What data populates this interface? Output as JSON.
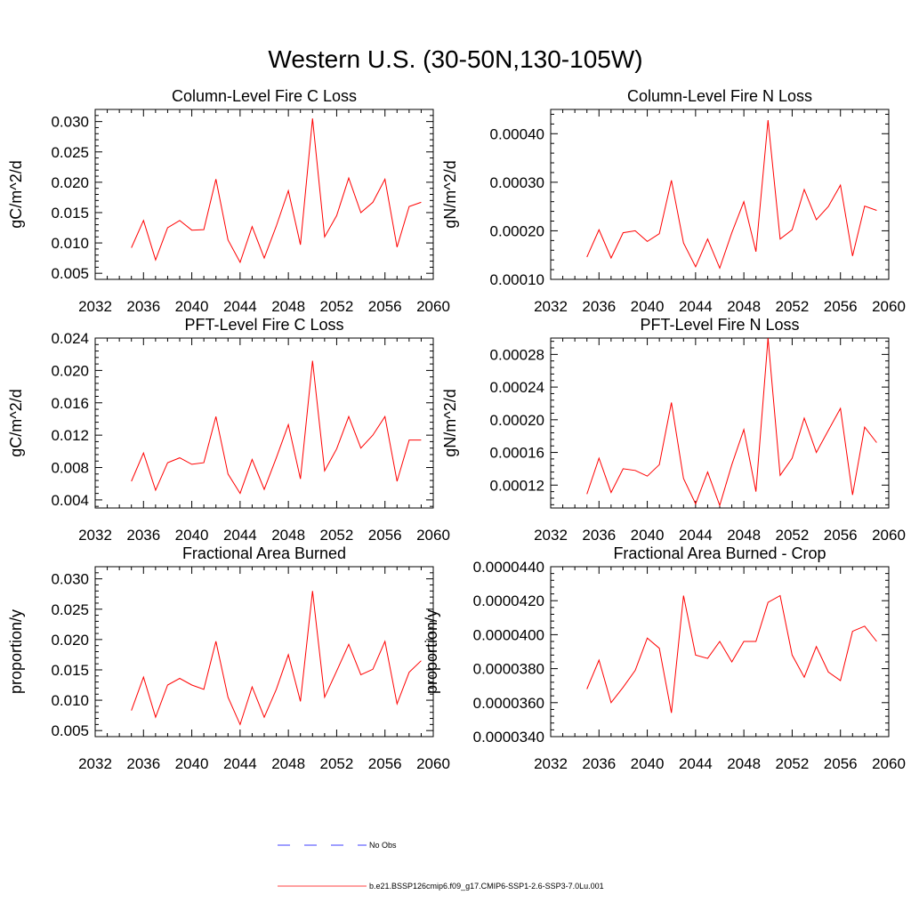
{
  "title": "Western U.S. (30-50N,130-105W)",
  "legend": {
    "obs_label": "No Obs",
    "model_label": "b.e21.BSSP126cmip6.f09_g17.CMIP6-SSP1-2.6-SSP3-7.0Lu.001",
    "obs_color": "#0000ff",
    "model_color": "#ff0000"
  },
  "chart_data": [
    {
      "type": "line",
      "title": "Column-Level Fire C Loss",
      "ylabel": "gC/m^2/d",
      "xlim": [
        2032,
        2060
      ],
      "ylim": [
        0.004,
        0.032
      ],
      "xticks": [
        "2032",
        "2036",
        "2040",
        "2044",
        "2048",
        "2052",
        "2056",
        "2060"
      ],
      "yticks": [
        0.005,
        0.01,
        0.015,
        0.02,
        0.025,
        0.03
      ],
      "ytick_labels": [
        "0.005",
        "0.010",
        "0.015",
        "0.020",
        "0.025",
        "0.030"
      ],
      "x": [
        2035,
        2036,
        2037,
        2038,
        2039,
        2040,
        2041,
        2042,
        2043,
        2044,
        2045,
        2046,
        2047,
        2048,
        2049,
        2050,
        2051,
        2052,
        2053,
        2054,
        2055,
        2056,
        2057,
        2058,
        2059
      ],
      "series": [
        {
          "color": "#ff0000",
          "values": [
            0.0092,
            0.0137,
            0.0072,
            0.0125,
            0.0137,
            0.0121,
            0.0122,
            0.0205,
            0.0105,
            0.0068,
            0.0127,
            0.0075,
            0.0128,
            0.0186,
            0.0097,
            0.0305,
            0.011,
            0.0145,
            0.0207,
            0.015,
            0.0167,
            0.0205,
            0.0093,
            0.016,
            0.0167
          ]
        }
      ]
    },
    {
      "type": "line",
      "title": "Column-Level Fire N Loss",
      "ylabel": "gN/m^2/d",
      "xlim": [
        2032,
        2060
      ],
      "ylim": [
        0.0001,
        0.00045
      ],
      "xticks": [
        "2032",
        "2036",
        "2040",
        "2044",
        "2048",
        "2052",
        "2056",
        "2060"
      ],
      "yticks": [
        0.0001,
        0.0002,
        0.0003,
        0.0004
      ],
      "ytick_labels": [
        "0.00010",
        "0.00020",
        "0.00030",
        "0.00040"
      ],
      "x": [
        2035,
        2036,
        2037,
        2038,
        2039,
        2040,
        2041,
        2042,
        2043,
        2044,
        2045,
        2046,
        2047,
        2048,
        2049,
        2050,
        2051,
        2052,
        2053,
        2054,
        2055,
        2056,
        2057,
        2058,
        2059
      ],
      "series": [
        {
          "color": "#ff0000",
          "values": [
            0.000146,
            0.000202,
            0.000144,
            0.000196,
            0.0002,
            0.000178,
            0.000194,
            0.000304,
            0.000175,
            0.000126,
            0.000183,
            0.000123,
            0.000196,
            0.00026,
            0.000157,
            0.000428,
            0.000183,
            0.000202,
            0.000285,
            0.000223,
            0.00025,
            0.000294,
            0.000148,
            0.000251,
            0.000242
          ]
        }
      ]
    },
    {
      "type": "line",
      "title": "PFT-Level Fire C Loss",
      "ylabel": "gC/m^2/d",
      "xlim": [
        2032,
        2060
      ],
      "ylim": [
        0.003,
        0.024
      ],
      "xticks": [
        "2032",
        "2036",
        "2040",
        "2044",
        "2048",
        "2052",
        "2056",
        "2060"
      ],
      "yticks": [
        0.004,
        0.008,
        0.012,
        0.016,
        0.02,
        0.024
      ],
      "ytick_labels": [
        "0.004",
        "0.008",
        "0.012",
        "0.016",
        "0.020",
        "0.024"
      ],
      "x": [
        2035,
        2036,
        2037,
        2038,
        2039,
        2040,
        2041,
        2042,
        2043,
        2044,
        2045,
        2046,
        2047,
        2048,
        2049,
        2050,
        2051,
        2052,
        2053,
        2054,
        2055,
        2056,
        2057,
        2058,
        2059
      ],
      "series": [
        {
          "color": "#ff0000",
          "values": [
            0.0063,
            0.0098,
            0.0052,
            0.0086,
            0.0092,
            0.0084,
            0.0086,
            0.0143,
            0.0072,
            0.0048,
            0.009,
            0.0053,
            0.0092,
            0.0133,
            0.0066,
            0.0212,
            0.0076,
            0.0103,
            0.0143,
            0.0104,
            0.012,
            0.0143,
            0.0063,
            0.0114,
            0.0114
          ]
        }
      ]
    },
    {
      "type": "line",
      "title": "PFT-Level Fire N Loss",
      "ylabel": "gN/m^2/d",
      "xlim": [
        2032,
        2060
      ],
      "ylim": [
        9.2e-05,
        0.0003
      ],
      "xticks": [
        "2032",
        "2036",
        "2040",
        "2044",
        "2048",
        "2052",
        "2056",
        "2060"
      ],
      "yticks": [
        0.00012,
        0.00016,
        0.0002,
        0.00024,
        0.00028
      ],
      "ytick_labels": [
        "0.00012",
        "0.00016",
        "0.00020",
        "0.00024",
        "0.00028"
      ],
      "x": [
        2035,
        2036,
        2037,
        2038,
        2039,
        2040,
        2041,
        2042,
        2043,
        2044,
        2045,
        2046,
        2047,
        2048,
        2049,
        2050,
        2051,
        2052,
        2053,
        2054,
        2055,
        2056,
        2057,
        2058,
        2059
      ],
      "series": [
        {
          "color": "#ff0000",
          "values": [
            0.000109,
            0.000153,
            0.000111,
            0.00014,
            0.000138,
            0.000131,
            0.000145,
            0.000221,
            0.000128,
            9.7e-05,
            0.000136,
            9.5e-05,
            0.000145,
            0.000188,
            0.000112,
            0.0003,
            0.000132,
            0.000153,
            0.000202,
            0.00016,
            0.000187,
            0.000214,
            0.000108,
            0.000191,
            0.000172
          ]
        }
      ]
    },
    {
      "type": "line",
      "title": "Fractional Area Burned",
      "ylabel": "proportion/y",
      "xlim": [
        2032,
        2060
      ],
      "ylim": [
        0.004,
        0.032
      ],
      "xticks": [
        "2032",
        "2036",
        "2040",
        "2044",
        "2048",
        "2052",
        "2056",
        "2060"
      ],
      "yticks": [
        0.005,
        0.01,
        0.015,
        0.02,
        0.025,
        0.03
      ],
      "ytick_labels": [
        "0.005",
        "0.010",
        "0.015",
        "0.020",
        "0.025",
        "0.030"
      ],
      "x": [
        2035,
        2036,
        2037,
        2038,
        2039,
        2040,
        2041,
        2042,
        2043,
        2044,
        2045,
        2046,
        2047,
        2048,
        2049,
        2050,
        2051,
        2052,
        2053,
        2054,
        2055,
        2056,
        2057,
        2058,
        2059
      ],
      "series": [
        {
          "color": "#ff0000",
          "values": [
            0.0083,
            0.0138,
            0.0072,
            0.0125,
            0.0136,
            0.0125,
            0.0118,
            0.0197,
            0.0105,
            0.006,
            0.0122,
            0.0072,
            0.0118,
            0.0175,
            0.0098,
            0.028,
            0.0105,
            0.0148,
            0.0192,
            0.0142,
            0.0151,
            0.0197,
            0.0094,
            0.0146,
            0.0165
          ]
        }
      ]
    },
    {
      "type": "line",
      "title": "Fractional Area Burned - Crop",
      "ylabel": "proportion/y",
      "xlim": [
        2032,
        2060
      ],
      "ylim": [
        3.4e-05,
        4.4e-05
      ],
      "xticks": [
        "2032",
        "2036",
        "2040",
        "2044",
        "2048",
        "2052",
        "2056",
        "2060"
      ],
      "yticks": [
        3.4e-05,
        3.6e-05,
        3.8e-05,
        4e-05,
        4.2e-05,
        4.4e-05
      ],
      "ytick_labels": [
        "0.0000340",
        "0.0000360",
        "0.0000380",
        "0.0000400",
        "0.0000420",
        "0.0000440"
      ],
      "x": [
        2035,
        2036,
        2037,
        2038,
        2039,
        2040,
        2041,
        2042,
        2043,
        2044,
        2045,
        2046,
        2047,
        2048,
        2049,
        2050,
        2051,
        2052,
        2053,
        2054,
        2055,
        2056,
        2057,
        2058,
        2059
      ],
      "series": [
        {
          "color": "#ff0000",
          "values": [
            3.68e-05,
            3.85e-05,
            3.6e-05,
            3.69e-05,
            3.79e-05,
            3.98e-05,
            3.92e-05,
            3.54e-05,
            4.23e-05,
            3.88e-05,
            3.86e-05,
            3.96e-05,
            3.84e-05,
            3.96e-05,
            3.96e-05,
            4.19e-05,
            4.23e-05,
            3.88e-05,
            3.75e-05,
            3.93e-05,
            3.78e-05,
            3.73e-05,
            4.02e-05,
            4.05e-05,
            3.96e-05
          ]
        }
      ]
    }
  ]
}
